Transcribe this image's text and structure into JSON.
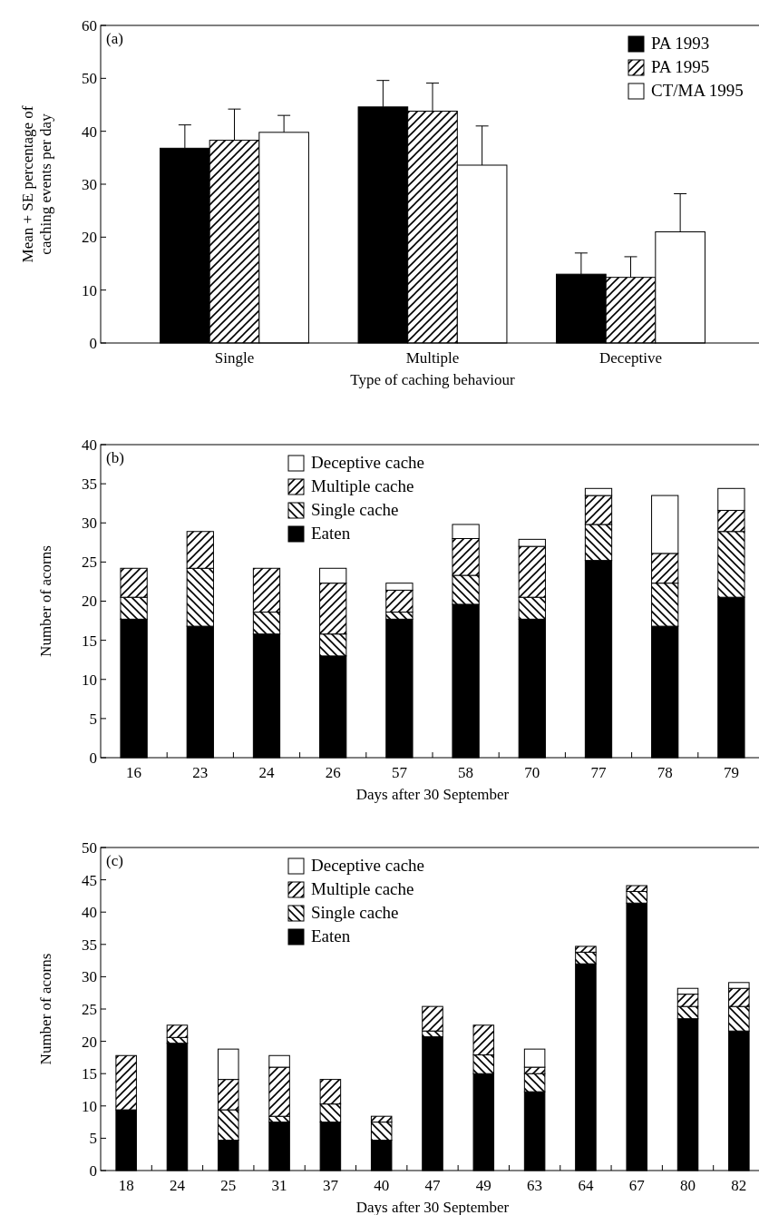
{
  "chart_data": [
    {
      "type": "bar",
      "title": "(a)",
      "xlabel": "Type of caching behaviour",
      "ylabel": "Mean + SE percentage of caching events per day",
      "categories": [
        "Single",
        "Multiple",
        "Deceptive"
      ],
      "ylim": [
        0,
        60
      ],
      "yticks": [
        0,
        10,
        20,
        30,
        40,
        50,
        60
      ],
      "legend": "top right",
      "series": [
        {
          "name": "PA 1993",
          "color": "#000000",
          "values": [
            36.8,
            44.6,
            13.0
          ],
          "errors": [
            [
              36.8,
              41.2
            ],
            [
              44.6,
              49.6
            ],
            [
              13.0,
              17.0
            ]
          ]
        },
        {
          "name": "PA 1995",
          "color": "#000000",
          "values": [
            38.3,
            43.8,
            12.4
          ],
          "errors": [
            [
              38.3,
              44.2
            ],
            [
              43.8,
              49.1
            ],
            [
              12.4,
              16.3
            ]
          ]
        },
        {
          "name": "CT/MA 1995",
          "color": "#ffffff",
          "values": [
            39.8,
            33.6,
            21.0
          ],
          "errors": [
            [
              39.8,
              43.0
            ],
            [
              33.6,
              41.0
            ],
            [
              21.0,
              28.2
            ]
          ]
        }
      ]
    },
    {
      "type": "bar",
      "title": "(b)",
      "xlabel": "Days after 30 September",
      "ylabel": "Number of acorns",
      "stacked": true,
      "categories": [
        "16",
        "23",
        "24",
        "26",
        "57",
        "58",
        "70",
        "77",
        "78",
        "79"
      ],
      "ylim": [
        0,
        40
      ],
      "yticks": [
        0,
        5,
        10,
        15,
        20,
        25,
        30,
        35,
        40
      ],
      "legend": "top left",
      "series": [
        {
          "name": "Eaten",
          "color": "#000000",
          "values": [
            17.7,
            16.8,
            15.8,
            13.0,
            17.7,
            19.6,
            17.7,
            25.2,
            16.8,
            20.5
          ]
        },
        {
          "name": "Single cache",
          "color": "#000000",
          "values": [
            2.8,
            7.4,
            2.8,
            2.8,
            0.9,
            3.7,
            2.8,
            4.6,
            5.5,
            8.4
          ]
        },
        {
          "name": "Multiple cache",
          "color": "#000000",
          "values": [
            3.7,
            4.7,
            5.6,
            6.5,
            2.8,
            4.7,
            6.5,
            3.7,
            3.8,
            2.7
          ]
        },
        {
          "name": "Deceptive cache",
          "color": "#ffffff",
          "values": [
            0,
            0,
            0,
            1.9,
            0.9,
            1.8,
            0.9,
            0.9,
            7.4,
            2.8
          ]
        }
      ]
    },
    {
      "type": "bar",
      "title": "(c)",
      "xlabel": "Days after 30 September",
      "ylabel": "Number of acorns",
      "stacked": true,
      "categories": [
        "18",
        "24",
        "25",
        "31",
        "37",
        "40",
        "47",
        "49",
        "63",
        "64",
        "67",
        "80",
        "82"
      ],
      "ylim": [
        0,
        50
      ],
      "yticks": [
        0,
        5,
        10,
        15,
        20,
        25,
        30,
        35,
        40,
        45,
        50
      ],
      "legend": "top left",
      "series": [
        {
          "name": "Eaten",
          "color": "#000000",
          "values": [
            9.4,
            19.7,
            4.7,
            7.5,
            7.5,
            4.7,
            20.7,
            15.0,
            12.2,
            32.0,
            41.4,
            23.5,
            21.6
          ]
        },
        {
          "name": "Single cache",
          "color": "#000000",
          "values": [
            0,
            0.9,
            4.7,
            0.9,
            2.8,
            2.8,
            0.9,
            2.9,
            2.8,
            1.8,
            1.8,
            1.9,
            3.8
          ]
        },
        {
          "name": "Multiple cache",
          "color": "#000000",
          "values": [
            8.4,
            1.9,
            4.7,
            7.6,
            3.8,
            0.9,
            3.8,
            4.6,
            1.0,
            0.9,
            0.9,
            1.9,
            2.8
          ]
        },
        {
          "name": "Deceptive cache",
          "color": "#ffffff",
          "values": [
            0,
            0,
            4.7,
            1.8,
            0,
            0,
            0,
            0,
            2.8,
            0,
            0,
            0.9,
            0.9
          ]
        }
      ]
    }
  ]
}
